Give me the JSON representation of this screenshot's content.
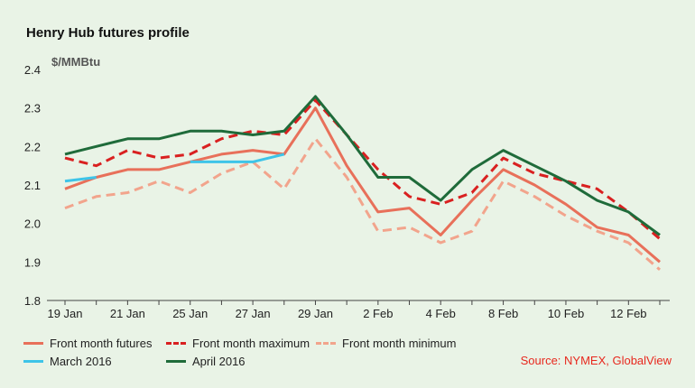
{
  "chart_data": {
    "type": "line",
    "title": "Henry Hub futures profile",
    "ylabel": "$/MMBtu",
    "xlabel": "",
    "ylim": [
      1.8,
      2.4
    ],
    "yticks": [
      "1.8",
      "1.9",
      "2.0",
      "2.1",
      "2.2",
      "2.3",
      "2.4"
    ],
    "x_tick_labels": [
      "19 Jan",
      "21 Jan",
      "25 Jan",
      "27 Jan",
      "29 Jan",
      "2 Feb",
      "4 Feb",
      "8 Feb",
      "10 Feb",
      "12 Feb"
    ],
    "x": [
      "19 Jan",
      "20 Jan",
      "21 Jan",
      "22 Jan",
      "25 Jan",
      "26 Jan",
      "27 Jan",
      "28 Jan",
      "29 Jan",
      "1 Feb",
      "2 Feb",
      "3 Feb",
      "4 Feb",
      "5 Feb",
      "8 Feb",
      "9 Feb",
      "10 Feb",
      "11 Feb",
      "12 Feb",
      "16 Feb"
    ],
    "series": [
      {
        "name": "Front month futures",
        "color": "#e8705a",
        "dash": "solid",
        "values": [
          2.09,
          2.12,
          2.14,
          2.14,
          2.16,
          2.18,
          2.19,
          2.18,
          2.3,
          2.15,
          2.03,
          2.04,
          1.97,
          2.06,
          2.14,
          2.1,
          2.05,
          1.99,
          1.97,
          1.9
        ]
      },
      {
        "name": "Front month maximum",
        "color": "#d92020",
        "dash": "dashed",
        "values": [
          2.17,
          2.15,
          2.19,
          2.17,
          2.18,
          2.22,
          2.24,
          2.23,
          2.32,
          2.23,
          2.14,
          2.07,
          2.05,
          2.08,
          2.17,
          2.13,
          2.11,
          2.09,
          2.03,
          1.96
        ]
      },
      {
        "name": "Front month minimum",
        "color": "#f2a48c",
        "dash": "dashed",
        "values": [
          2.04,
          2.07,
          2.08,
          2.11,
          2.08,
          2.13,
          2.16,
          2.09,
          2.22,
          2.12,
          1.98,
          1.99,
          1.95,
          1.98,
          2.11,
          2.07,
          2.02,
          1.98,
          1.95,
          1.88
        ]
      },
      {
        "name": "March 2016",
        "color": "#3ec4e8",
        "dash": "solid",
        "values": [
          2.11,
          2.12,
          null,
          null,
          2.16,
          2.16,
          2.16,
          2.18,
          null,
          null,
          null,
          null,
          null,
          null,
          null,
          null,
          null,
          null,
          null,
          null
        ]
      },
      {
        "name": "April 2016",
        "color": "#1f6b3a",
        "dash": "solid",
        "values": [
          2.18,
          2.2,
          2.22,
          2.22,
          2.24,
          2.24,
          2.23,
          2.24,
          2.33,
          2.23,
          2.12,
          2.12,
          2.06,
          2.14,
          2.19,
          2.15,
          2.11,
          2.06,
          2.03,
          1.97
        ]
      }
    ],
    "grid": false,
    "legend_position": "bottom"
  },
  "source_text": "Source: NYMEX, GlobalView"
}
